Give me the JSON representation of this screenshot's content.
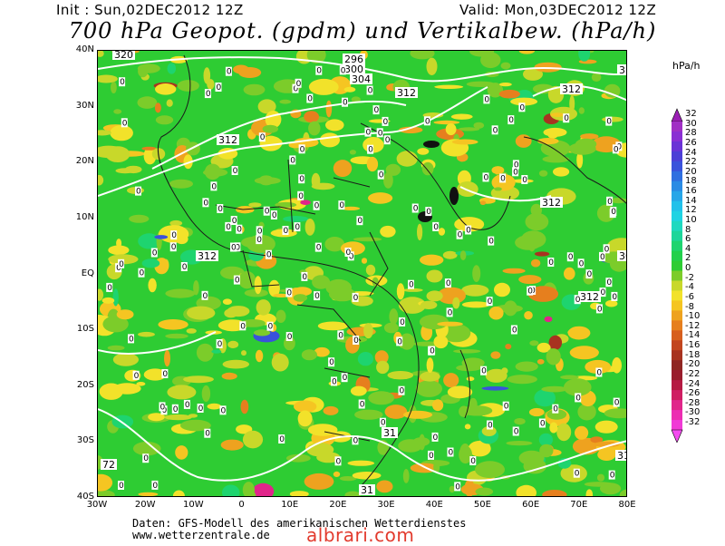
{
  "header": {
    "init": "Init : Sun,02DEC2012 12Z",
    "valid": "Valid: Mon,03DEC2012 12Z",
    "title": "700 hPa Geopot. (gpdm) und Vertikalbew. (hPa/h)"
  },
  "axes": {
    "lat_labels": [
      "40N",
      "30N",
      "20N",
      "10N",
      "EQ",
      "10S",
      "20S",
      "30S",
      "40S"
    ],
    "lon_labels": [
      "30W",
      "20W",
      "10W",
      "0",
      "10E",
      "20E",
      "30E",
      "40E",
      "50E",
      "60E",
      "70E",
      "80E"
    ],
    "lat_range": [
      -40,
      40
    ],
    "lon_range": [
      -30,
      80
    ]
  },
  "colorbar": {
    "unit": "hPa/h",
    "levels": [
      "32",
      "30",
      "28",
      "26",
      "24",
      "22",
      "20",
      "18",
      "16",
      "14",
      "12",
      "10",
      "8",
      "6",
      "4",
      "2",
      "0",
      "-2",
      "-4",
      "-6",
      "-8",
      "-10",
      "-12",
      "-14",
      "-16",
      "-18",
      "-20",
      "-22",
      "-24",
      "-26",
      "-28",
      "-30",
      "-32"
    ],
    "colors": [
      "#9b1fb5",
      "#a030c4",
      "#8a2fd3",
      "#6a33d6",
      "#4c3fd6",
      "#3a52db",
      "#2f6fe0",
      "#2a8be4",
      "#27a6e8",
      "#22c1ea",
      "#1fd3e3",
      "#1fd9c0",
      "#1dd69a",
      "#1ed46f",
      "#22d04b",
      "#2ecc33",
      "#7ccc2a",
      "#c8d82a",
      "#f2e22a",
      "#f5c522",
      "#eea21f",
      "#e67f1e",
      "#d75f1e",
      "#c2451f",
      "#a83320",
      "#8f2622",
      "#991c2c",
      "#b51a43",
      "#cf1d62",
      "#e0258a",
      "#ec2db2",
      "#f03ad6",
      "#f44cf0"
    ]
  },
  "map": {
    "field": "700 hPa vertical motion shading with geopotential contours",
    "contour_labels": [
      "320",
      "296",
      "300",
      "304",
      "312",
      "312",
      "312",
      "312",
      "312",
      "312",
      "31",
      "31",
      "31",
      "304",
      "312",
      "72"
    ],
    "zero_contour_label": "0"
  },
  "credits": {
    "line1": "Daten: GFS-Modell des amerikanischen Wetterdienstes",
    "line2": "www.wetterzentrale.de"
  },
  "watermark": "albrari.com"
}
